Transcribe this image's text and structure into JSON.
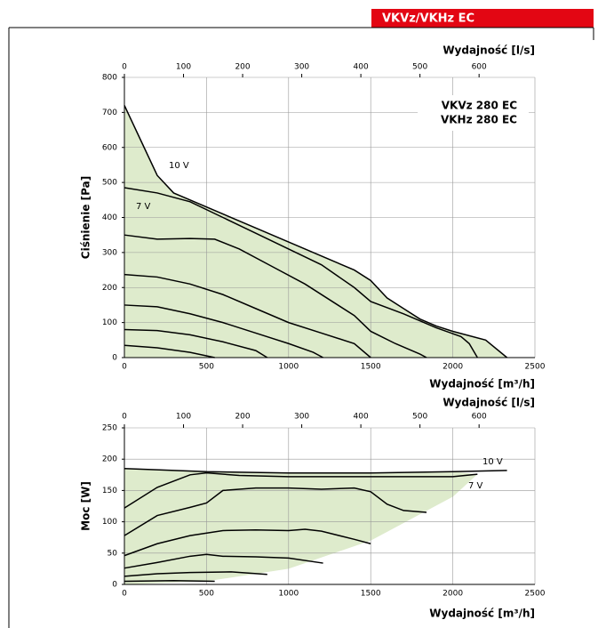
{
  "header": {
    "title": "VKVz/VKHz EC"
  },
  "chart_data": [
    {
      "type": "line",
      "title_lines": [
        "VKVz 280 EC",
        "VKHz 280 EC"
      ],
      "xlabel": "Wydajność [m³/h]",
      "x2label": "Wydajność [l/s]",
      "ylabel": "Ciśnienie [Pa]",
      "xlim": [
        0,
        2500
      ],
      "xticks": [
        0,
        500,
        1000,
        1500,
        2000,
        2500
      ],
      "x2lim": [
        0,
        694.44
      ],
      "x2ticks": [
        0,
        100,
        200,
        300,
        400,
        500,
        600
      ],
      "ylim": [
        0,
        800
      ],
      "yticks": [
        0,
        100,
        200,
        300,
        400,
        500,
        600,
        700,
        800
      ],
      "grid": true,
      "annotations": [
        "10 V",
        "7 V"
      ],
      "shaded_region": {
        "color": "#deebcc",
        "x": [
          0,
          100,
          200,
          300,
          400,
          500,
          600,
          800,
          1000,
          1200,
          1400,
          1500,
          1600,
          1700,
          1800,
          1900,
          2000,
          2200,
          2330,
          0
        ],
        "values": [
          720,
          620,
          520,
          470,
          450,
          430,
          410,
          370,
          330,
          290,
          250,
          220,
          170,
          140,
          110,
          90,
          75,
          50,
          0,
          0
        ]
      },
      "series": [
        {
          "color": "#000000",
          "x": [
            0,
            100,
            200,
            300,
            400,
            500,
            600,
            800,
            1000,
            1200,
            1400,
            1500,
            1600,
            1700,
            1800,
            1900,
            2000,
            2200,
            2330
          ],
          "values": [
            720,
            620,
            520,
            470,
            450,
            430,
            410,
            370,
            330,
            290,
            250,
            220,
            170,
            140,
            110,
            90,
            75,
            50,
            0
          ]
        },
        {
          "color": "#000000",
          "x": [
            0,
            200,
            400,
            600,
            800,
            1000,
            1200,
            1400,
            1500,
            1700,
            1900,
            2050,
            2100,
            2150
          ],
          "values": [
            485,
            470,
            445,
            400,
            355,
            310,
            265,
            200,
            160,
            125,
            85,
            60,
            40,
            0
          ]
        },
        {
          "color": "#000000",
          "x": [
            0,
            200,
            400,
            550,
            700,
            900,
            1100,
            1300,
            1400,
            1500,
            1650,
            1800,
            1840
          ],
          "values": [
            350,
            338,
            340,
            338,
            310,
            260,
            210,
            150,
            120,
            75,
            40,
            10,
            0
          ]
        },
        {
          "color": "#000000",
          "x": [
            0,
            200,
            400,
            600,
            800,
            1000,
            1200,
            1400,
            1500
          ],
          "values": [
            237,
            230,
            210,
            180,
            140,
            100,
            70,
            40,
            0
          ]
        },
        {
          "color": "#000000",
          "x": [
            0,
            200,
            400,
            600,
            800,
            1000,
            1150,
            1210
          ],
          "values": [
            150,
            145,
            125,
            100,
            70,
            40,
            15,
            0
          ]
        },
        {
          "color": "#000000",
          "x": [
            0,
            200,
            400,
            600,
            800,
            870
          ],
          "values": [
            80,
            77,
            65,
            45,
            20,
            0
          ]
        },
        {
          "color": "#000000",
          "x": [
            0,
            200,
            400,
            550
          ],
          "values": [
            35,
            28,
            15,
            0
          ]
        }
      ]
    },
    {
      "type": "line",
      "xlabel": "Wydajność [m³/h]",
      "x2label": "Wydajność [l/s]",
      "ylabel": "Moc [W]",
      "xlim": [
        0,
        2500
      ],
      "xticks": [
        0,
        500,
        1000,
        1500,
        2000,
        2500
      ],
      "x2lim": [
        0,
        694.44
      ],
      "x2ticks": [
        0,
        100,
        200,
        300,
        400,
        500,
        600
      ],
      "ylim": [
        0,
        250
      ],
      "yticks": [
        0,
        50,
        100,
        150,
        200,
        250
      ],
      "grid": true,
      "annotations": [
        "10 V",
        "7 V"
      ],
      "shaded_region": {
        "color": "#deebcc",
        "x": [
          0,
          500,
          1000,
          1500,
          2000,
          2150,
          2000,
          1500,
          1000,
          500,
          0
        ],
        "values": [
          185,
          180,
          178,
          178,
          180,
          176,
          140,
          70,
          25,
          5,
          0
        ]
      },
      "series": [
        {
          "color": "#000000",
          "x": [
            0,
            500,
            1000,
            1500,
            2000,
            2330
          ],
          "values": [
            185,
            180,
            178,
            178,
            180,
            182
          ]
        },
        {
          "color": "#000000",
          "x": [
            0,
            200,
            400,
            500,
            700,
            1000,
            1500,
            2000,
            2150
          ],
          "values": [
            122,
            155,
            175,
            178,
            174,
            172,
            172,
            172,
            176
          ]
        },
        {
          "color": "#000000",
          "x": [
            0,
            200,
            400,
            500,
            600,
            800,
            1000,
            1200,
            1400,
            1500,
            1600,
            1700,
            1840
          ],
          "values": [
            78,
            110,
            123,
            130,
            150,
            154,
            154,
            152,
            154,
            148,
            128,
            118,
            115
          ]
        },
        {
          "color": "#000000",
          "x": [
            0,
            200,
            400,
            600,
            800,
            1000,
            1100,
            1200,
            1400,
            1500
          ],
          "values": [
            46,
            65,
            78,
            86,
            87,
            86,
            88,
            85,
            72,
            65
          ]
        },
        {
          "color": "#000000",
          "x": [
            0,
            200,
            400,
            500,
            600,
            800,
            1000,
            1210
          ],
          "values": [
            26,
            35,
            45,
            48,
            45,
            44,
            42,
            34
          ]
        },
        {
          "color": "#000000",
          "x": [
            0,
            200,
            400,
            650,
            870
          ],
          "values": [
            13,
            17,
            19,
            20,
            16
          ]
        },
        {
          "color": "#000000",
          "x": [
            0,
            300,
            550
          ],
          "values": [
            5,
            6,
            5
          ]
        }
      ]
    }
  ]
}
